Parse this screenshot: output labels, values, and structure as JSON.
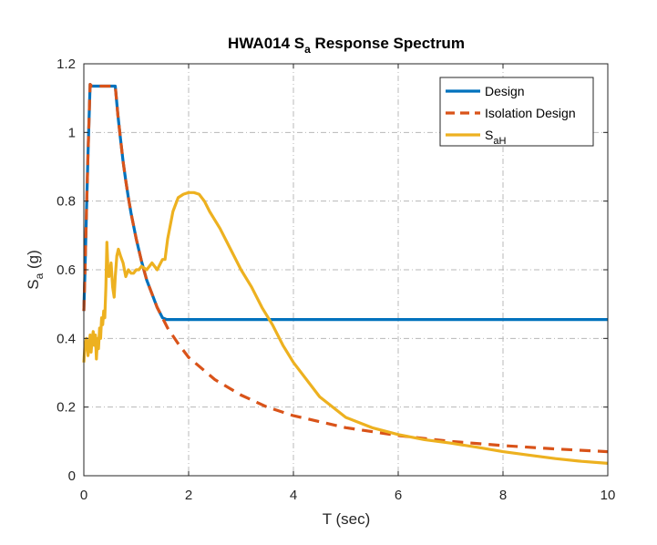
{
  "chart_data": {
    "type": "line",
    "title": {
      "main": "HWA014 S",
      "sub": "a",
      "rest": " Response Spectrum"
    },
    "xlabel": "T (sec)",
    "ylabel": {
      "main": "S",
      "sub": "a",
      "rest": " (g)"
    },
    "xlim": [
      0,
      10
    ],
    "ylim": [
      0,
      1.2
    ],
    "xticks": [
      0,
      2,
      4,
      6,
      8,
      10
    ],
    "yticks": [
      0,
      0.2,
      0.4,
      0.6,
      0.8,
      1,
      1.2
    ],
    "xtick_labels": [
      "0",
      "2",
      "4",
      "6",
      "8",
      "10"
    ],
    "ytick_labels": [
      "0",
      "0.2",
      "0.4",
      "0.6",
      "0.8",
      "1",
      "1.2"
    ],
    "grid": true,
    "legend_position": "top-right",
    "series": [
      {
        "name": "Design",
        "label_main": "Design",
        "color": "#0072BD",
        "style": "solid",
        "x": [
          0.0,
          0.02,
          0.05,
          0.08,
          0.12,
          0.15,
          0.6,
          0.65,
          0.7,
          0.75,
          0.8,
          0.85,
          0.9,
          1.0,
          1.1,
          1.2,
          1.3,
          1.4,
          1.5,
          1.58,
          1.6,
          2.0,
          3.0,
          4.0,
          5.0,
          6.0,
          7.0,
          8.0,
          9.0,
          10.0
        ],
        "y": [
          0.48,
          0.59,
          0.77,
          0.94,
          1.14,
          1.135,
          1.135,
          1.05,
          0.98,
          0.915,
          0.86,
          0.81,
          0.765,
          0.69,
          0.625,
          0.57,
          0.53,
          0.49,
          0.46,
          0.455,
          0.455,
          0.455,
          0.455,
          0.455,
          0.455,
          0.455,
          0.455,
          0.455,
          0.455,
          0.455
        ]
      },
      {
        "name": "Isolation Design",
        "label_main": "Isolation Design",
        "color": "#D95319",
        "style": "dashed",
        "x": [
          0.0,
          0.02,
          0.05,
          0.08,
          0.12,
          0.15,
          0.6,
          0.65,
          0.7,
          0.75,
          0.8,
          0.85,
          0.9,
          1.0,
          1.1,
          1.2,
          1.3,
          1.4,
          1.5,
          1.6,
          1.8,
          2.0,
          2.5,
          3.0,
          3.5,
          4.0,
          5.0,
          6.0,
          7.0,
          8.0,
          9.0,
          10.0
        ],
        "y": [
          0.48,
          0.59,
          0.77,
          0.94,
          1.14,
          1.135,
          1.135,
          1.05,
          0.98,
          0.915,
          0.86,
          0.81,
          0.765,
          0.69,
          0.625,
          0.57,
          0.53,
          0.49,
          0.46,
          0.43,
          0.385,
          0.345,
          0.28,
          0.235,
          0.2,
          0.175,
          0.14,
          0.117,
          0.1,
          0.088,
          0.078,
          0.07
        ]
      },
      {
        "name": "SaH",
        "label_main": "S",
        "label_sub": "aH",
        "color": "#EDB120",
        "style": "solid",
        "x": [
          0.0,
          0.02,
          0.05,
          0.08,
          0.1,
          0.12,
          0.14,
          0.16,
          0.18,
          0.2,
          0.22,
          0.24,
          0.26,
          0.28,
          0.3,
          0.32,
          0.34,
          0.36,
          0.38,
          0.4,
          0.42,
          0.44,
          0.46,
          0.48,
          0.5,
          0.52,
          0.55,
          0.58,
          0.6,
          0.63,
          0.66,
          0.7,
          0.75,
          0.8,
          0.85,
          0.9,
          0.95,
          1.0,
          1.05,
          1.1,
          1.2,
          1.3,
          1.4,
          1.5,
          1.55,
          1.6,
          1.7,
          1.8,
          1.9,
          2.0,
          2.1,
          2.2,
          2.3,
          2.4,
          2.6,
          2.8,
          3.0,
          3.2,
          3.4,
          3.6,
          3.8,
          4.0,
          4.5,
          5.0,
          5.5,
          6.0,
          6.5,
          7.0,
          7.5,
          8.0,
          8.5,
          9.0,
          9.5,
          10.0
        ],
        "y": [
          0.33,
          0.38,
          0.4,
          0.35,
          0.38,
          0.41,
          0.36,
          0.4,
          0.42,
          0.38,
          0.41,
          0.34,
          0.4,
          0.37,
          0.43,
          0.4,
          0.46,
          0.44,
          0.48,
          0.46,
          0.55,
          0.68,
          0.6,
          0.58,
          0.6,
          0.62,
          0.55,
          0.52,
          0.58,
          0.64,
          0.66,
          0.64,
          0.62,
          0.58,
          0.6,
          0.59,
          0.59,
          0.6,
          0.6,
          0.61,
          0.6,
          0.62,
          0.6,
          0.63,
          0.63,
          0.69,
          0.77,
          0.81,
          0.82,
          0.825,
          0.825,
          0.82,
          0.8,
          0.77,
          0.72,
          0.66,
          0.6,
          0.55,
          0.49,
          0.44,
          0.38,
          0.33,
          0.23,
          0.17,
          0.14,
          0.12,
          0.105,
          0.095,
          0.083,
          0.07,
          0.06,
          0.05,
          0.042,
          0.036
        ]
      }
    ]
  }
}
